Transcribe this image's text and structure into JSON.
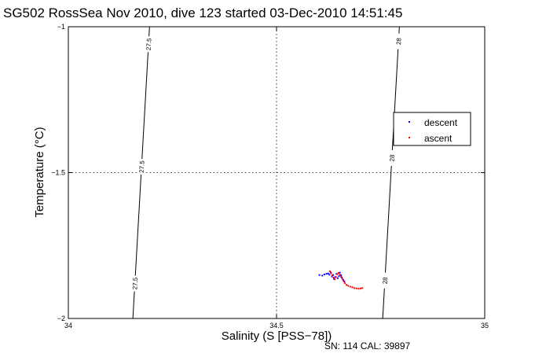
{
  "title": "SG502 RossSea Nov 2010, dive 123 started 03-Dec-2010 14:51:45",
  "footer": "SN: 114  CAL: 39897",
  "colors": {
    "descent": "#0000ff",
    "ascent": "#ff0000",
    "axes": "#000000"
  },
  "chart_data": {
    "type": "scatter",
    "title": "SG502 RossSea Nov 2010, dive 123 started 03-Dec-2010 14:51:45",
    "xlabel": "Salinity (S [PSS−78])",
    "ylabel": "Temperature (°C)",
    "xlim": [
      34,
      35
    ],
    "ylim": [
      -2,
      -1
    ],
    "xticks": [
      34,
      34.5,
      35
    ],
    "yticks": [
      -2,
      -1.5,
      -1
    ],
    "xtick_labels": [
      "34",
      "34.5",
      "35"
    ],
    "ytick_labels": [
      "−2",
      "−1.5",
      "−1"
    ],
    "grid": true,
    "legend_position": "right",
    "contours": [
      {
        "label": "27.5",
        "points": [
          [
            34.155,
            -2.0
          ],
          [
            34.195,
            -1.0
          ]
        ],
        "label_y": [
          -1.06,
          -1.48,
          -1.88
        ]
      },
      {
        "label": "28",
        "points": [
          [
            34.755,
            -2.0
          ],
          [
            34.795,
            -1.0
          ]
        ],
        "label_y": [
          -1.05,
          -1.45,
          -1.87
        ]
      }
    ],
    "series": [
      {
        "name": "descent",
        "color": "#0000ff",
        "x": [
          34.603,
          34.61,
          34.615,
          34.62,
          34.624,
          34.627,
          34.63,
          34.633,
          34.636,
          34.638,
          34.641,
          34.644,
          34.647,
          34.65,
          34.652,
          34.655,
          34.657,
          34.66,
          34.663
        ],
        "y": [
          -1.851,
          -1.853,
          -1.849,
          -1.847,
          -1.846,
          -1.85,
          -1.842,
          -1.856,
          -1.851,
          -1.864,
          -1.858,
          -1.847,
          -1.862,
          -1.855,
          -1.843,
          -1.852,
          -1.86,
          -1.868,
          -1.873
        ]
      },
      {
        "name": "ascent",
        "color": "#ff0000",
        "x": [
          34.628,
          34.631,
          34.634,
          34.637,
          34.64,
          34.643,
          34.646,
          34.649,
          34.652,
          34.655,
          34.658,
          34.661,
          34.664,
          34.668,
          34.672,
          34.677,
          34.682,
          34.687,
          34.692,
          34.697,
          34.702,
          34.706
        ],
        "y": [
          -1.838,
          -1.845,
          -1.852,
          -1.86,
          -1.866,
          -1.858,
          -1.848,
          -1.844,
          -1.85,
          -1.857,
          -1.864,
          -1.872,
          -1.879,
          -1.885,
          -1.888,
          -1.891,
          -1.893,
          -1.896,
          -1.897,
          -1.898,
          -1.897,
          -1.896
        ]
      }
    ]
  }
}
